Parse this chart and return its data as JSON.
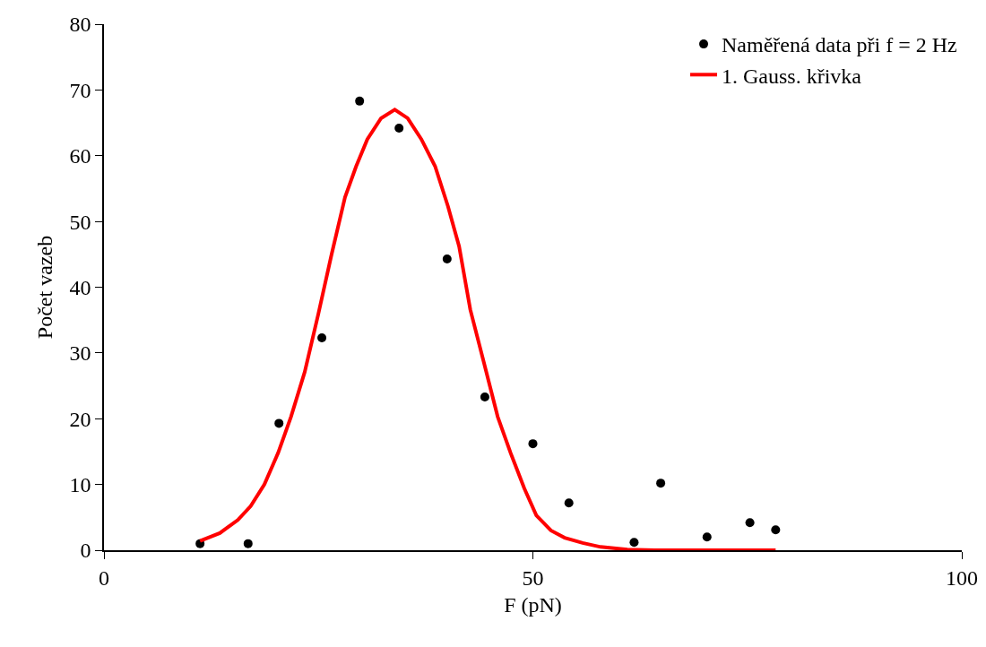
{
  "chart_data": {
    "type": "scatter",
    "xlabel": "F (pN)",
    "ylabel": "Počet vazeb",
    "xlim": [
      0,
      100
    ],
    "xticks": [
      0,
      50,
      100
    ],
    "ylim": [
      0,
      80
    ],
    "yticks": [
      0,
      10,
      20,
      30,
      40,
      50,
      60,
      70,
      80
    ],
    "grid": false,
    "legend": "top right",
    "series": [
      {
        "name": "Naměřená data při f = 2 Hz",
        "marker": "circle",
        "color": "#000000",
        "x": [
          11.2,
          16.8,
          20.4,
          25.4,
          29.8,
          34.4,
          40.0,
          44.4,
          50.0,
          54.2,
          61.8,
          64.9,
          70.3,
          75.3,
          78.3
        ],
        "values": [
          1,
          1,
          19.3,
          32.3,
          68.3,
          64.2,
          44.3,
          23.3,
          16.2,
          7.2,
          1.2,
          10.2,
          2,
          4.2,
          3.1
        ]
      },
      {
        "name": "1. Gauss. křivka",
        "type": "line",
        "marker": "none",
        "color": "#ff0000",
        "line_style": "solid",
        "x": [
          11.2,
          13.5,
          15.6,
          17.1,
          18.7,
          20.3,
          21.8,
          23.4,
          25,
          26.5,
          28.1,
          29.4,
          30.7,
          32.3,
          33.9,
          35.4,
          37,
          38.6,
          40.1,
          41.4,
          42.7,
          44.3,
          45.9,
          47.4,
          49,
          50.4,
          52.1,
          53.7,
          55.8,
          57.9,
          61,
          64.2,
          78.3
        ],
        "values": [
          1.4,
          2.6,
          4.6,
          6.7,
          10,
          14.8,
          20.3,
          27.1,
          36,
          44.8,
          53.7,
          58.4,
          62.5,
          65.7,
          67,
          65.7,
          62.5,
          58.4,
          52.3,
          46.2,
          36.6,
          28.5,
          20.3,
          14.8,
          9.4,
          5.3,
          3,
          1.9,
          1.1,
          0.5,
          0.1,
          0,
          0
        ]
      }
    ]
  }
}
